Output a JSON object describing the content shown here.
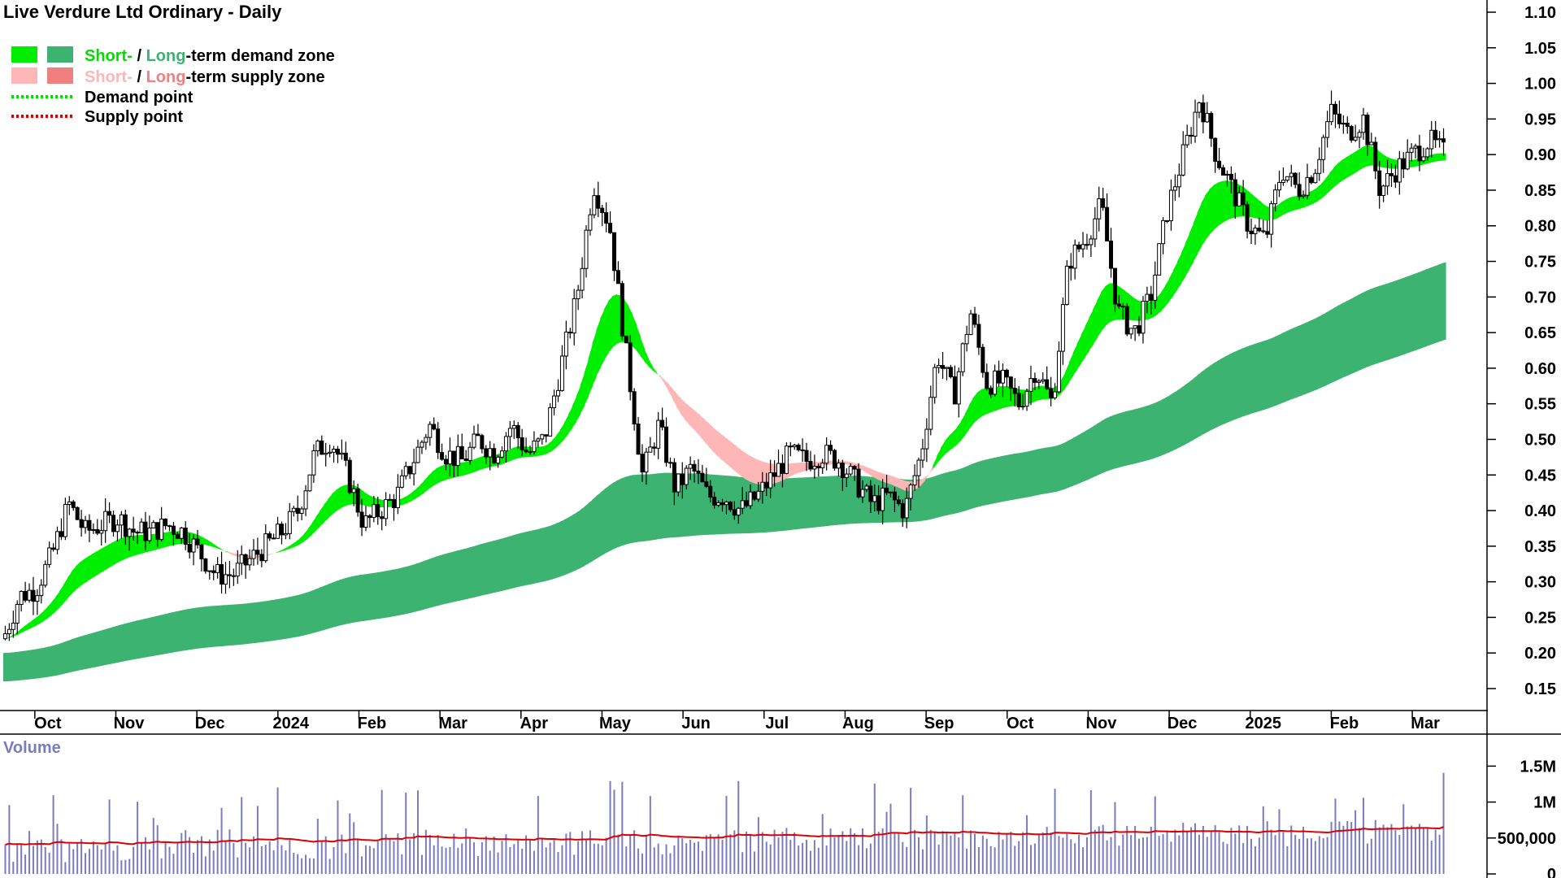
{
  "title": "Live Verdure Ltd Ordinary - Daily",
  "legend": {
    "demand_short": "Short-",
    "demand_sep": " / ",
    "demand_long": "Long",
    "demand_rest": "-term demand zone",
    "supply_short": "Short-",
    "supply_sep": " / ",
    "supply_long": "Long",
    "supply_rest": "-term supply zone",
    "demand_point": "Demand point",
    "supply_point": "Supply point"
  },
  "colors": {
    "short_demand": "#00ee00",
    "long_demand": "#3cb371",
    "short_supply": "#ffb6b6",
    "long_supply": "#ff6a20",
    "legend_long_supply": "#f08080",
    "demand_point": "#00dd00",
    "supply_point": "#dd0000",
    "volume_bar": "#7b7bc0",
    "volume_avg": "#dd0000"
  },
  "chart_data": {
    "type": "candlestick",
    "y_ticks": [
      "1.10",
      "1.05",
      "1.00",
      "0.95",
      "0.90",
      "0.85",
      "0.80",
      "0.75",
      "0.70",
      "0.65",
      "0.60",
      "0.55",
      "0.50",
      "0.45",
      "0.40",
      "0.35",
      "0.30",
      "0.25",
      "0.20",
      "0.15"
    ],
    "ylim": [
      0.1,
      1.1
    ],
    "x_months": [
      "Oct",
      "Nov",
      "Dec",
      "2024",
      "Feb",
      "Mar",
      "Apr",
      "May",
      "Jun",
      "Jul",
      "Aug",
      "Sep",
      "Oct",
      "Nov",
      "Dec",
      "2025",
      "Feb",
      "Mar"
    ],
    "close_path": [
      [
        0,
        0.22
      ],
      [
        0.5,
        0.28
      ],
      [
        1,
        0.29
      ],
      [
        1.5,
        0.34
      ],
      [
        2,
        0.41
      ],
      [
        2.5,
        0.37
      ],
      [
        3,
        0.38
      ],
      [
        3.5,
        0.39
      ],
      [
        4,
        0.37
      ],
      [
        4.5,
        0.37
      ],
      [
        5,
        0.38
      ],
      [
        5.5,
        0.37
      ],
      [
        6,
        0.34
      ],
      [
        6.5,
        0.31
      ],
      [
        7,
        0.31
      ],
      [
        7.5,
        0.33
      ],
      [
        8,
        0.35
      ],
      [
        8.5,
        0.37
      ],
      [
        9,
        0.4
      ],
      [
        9.5,
        0.48
      ],
      [
        10,
        0.5
      ],
      [
        10.5,
        0.45
      ],
      [
        11,
        0.38
      ],
      [
        11.5,
        0.4
      ],
      [
        12,
        0.42
      ],
      [
        12.5,
        0.47
      ],
      [
        13,
        0.52
      ],
      [
        13.5,
        0.48
      ],
      [
        14,
        0.47
      ],
      [
        14.5,
        0.5
      ],
      [
        15,
        0.48
      ],
      [
        15.5,
        0.52
      ],
      [
        16,
        0.48
      ],
      [
        16.5,
        0.5
      ],
      [
        17,
        0.6
      ],
      [
        17.5,
        0.7
      ],
      [
        18,
        0.86
      ],
      [
        18.5,
        0.8
      ],
      [
        19,
        0.62
      ],
      [
        19.5,
        0.45
      ],
      [
        20,
        0.52
      ],
      [
        20.5,
        0.43
      ],
      [
        21,
        0.46
      ],
      [
        21.5,
        0.42
      ],
      [
        22,
        0.42
      ],
      [
        22.5,
        0.4
      ],
      [
        23,
        0.42
      ],
      [
        23.5,
        0.45
      ],
      [
        24,
        0.48
      ],
      [
        24.5,
        0.47
      ],
      [
        25,
        0.48
      ],
      [
        25.5,
        0.47
      ],
      [
        26,
        0.44
      ],
      [
        26.5,
        0.41
      ],
      [
        27,
        0.42
      ],
      [
        27.5,
        0.4
      ],
      [
        28,
        0.48
      ],
      [
        28.5,
        0.62
      ],
      [
        29,
        0.56
      ],
      [
        29.5,
        0.68
      ],
      [
        30,
        0.58
      ],
      [
        30.5,
        0.58
      ],
      [
        31,
        0.55
      ],
      [
        31.5,
        0.6
      ],
      [
        32,
        0.55
      ],
      [
        32.5,
        0.75
      ],
      [
        33,
        0.78
      ],
      [
        33.5,
        0.83
      ],
      [
        34,
        0.68
      ],
      [
        34.5,
        0.65
      ],
      [
        35,
        0.7
      ],
      [
        35.5,
        0.82
      ],
      [
        36,
        0.9
      ],
      [
        36.5,
        0.98
      ],
      [
        37,
        0.9
      ],
      [
        37.5,
        0.85
      ],
      [
        38,
        0.8
      ],
      [
        38.5,
        0.78
      ],
      [
        39,
        0.88
      ],
      [
        39.5,
        0.85
      ],
      [
        40,
        0.88
      ],
      [
        40.5,
        0.96
      ],
      [
        41,
        0.93
      ],
      [
        41.5,
        0.95
      ],
      [
        42,
        0.85
      ],
      [
        42.5,
        0.88
      ],
      [
        43,
        0.9
      ],
      [
        43.5,
        0.92
      ],
      [
        44,
        0.9
      ]
    ],
    "volume": {
      "label": "Volume",
      "y_ticks": [
        "1.5M",
        "1M",
        "500,000",
        "0"
      ],
      "ylim": [
        0,
        1900000
      ]
    },
    "zones": [
      {
        "name": "Short-term demand zone",
        "color": "#00ee00"
      },
      {
        "name": "Long-term demand zone",
        "color": "#3cb371"
      },
      {
        "name": "Short-term supply zone",
        "color": "#ffb6b6"
      },
      {
        "name": "Long-term supply zone",
        "color": "#ff6a20"
      }
    ],
    "grid": false,
    "legend_position": "top-left"
  }
}
